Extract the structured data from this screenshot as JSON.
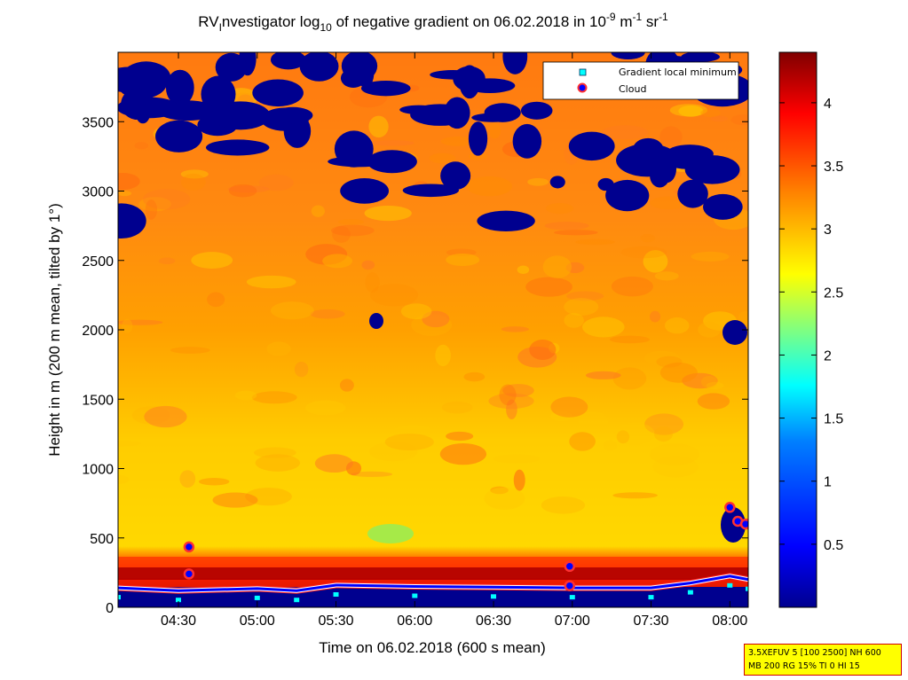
{
  "title": {
    "prefix": "RV",
    "prefix_sub": "I",
    "part1": "nvestigator log",
    "log_sub": "10",
    "part2": " of negative gradient on 06.02.2018 in 10",
    "exp1": "-9",
    "unit1": " m",
    "exp2": "-1",
    "unit2": " sr",
    "exp3": "-1"
  },
  "legend": {
    "gradient_label": "Gradient local minimum",
    "cloud_label": "Cloud"
  },
  "info_box": {
    "line1": "3.5XEFUV 5 [100 2500] NH 600",
    "line2": "MB 200 RG 15% TI 0 HI 15"
  },
  "colors": {
    "colormap": [
      "#00008f",
      "#0000ff",
      "#0080ff",
      "#00ffff",
      "#80ff80",
      "#ffff00",
      "#ff8000",
      "#ff0000",
      "#800000"
    ],
    "background_blue": "#00008f",
    "cloud_marker_fill": "#0000ff",
    "cloud_marker_edge": "#ff3030",
    "gradient_marker": "#00ffff"
  },
  "chart_data": {
    "type": "heatmap",
    "xlabel": "Time on 06.02.2018 (600 s mean)",
    "ylabel": "Height in m (200 m mean, tilted by 1°)",
    "x_ticks": [
      "04:30",
      "05:00",
      "05:30",
      "06:00",
      "06:30",
      "07:00",
      "07:30",
      "08:00"
    ],
    "x_range": [
      "04:07",
      "08:07"
    ],
    "y_ticks": [
      0,
      500,
      1000,
      1500,
      2000,
      2500,
      3000,
      3500
    ],
    "y_range": [
      0,
      4000
    ],
    "colorbar": {
      "ticks": [
        "0.5",
        "1",
        "1.5",
        "2",
        "2.5",
        "3",
        "3.5",
        "4"
      ],
      "range": [
        0,
        4.4
      ]
    },
    "legend_position": "top-right",
    "cloud_points": [
      {
        "time": "04:34",
        "height": 435
      },
      {
        "time": "04:34",
        "height": 240
      },
      {
        "time": "06:59",
        "height": 295
      },
      {
        "time": "06:59",
        "height": 155
      },
      {
        "time": "08:00",
        "height": 720
      },
      {
        "time": "08:03",
        "height": 620
      },
      {
        "time": "08:06",
        "height": 600
      }
    ],
    "gradient_line": [
      {
        "time": "04:07",
        "height": 140
      },
      {
        "time": "04:30",
        "height": 120
      },
      {
        "time": "05:00",
        "height": 135
      },
      {
        "time": "05:15",
        "height": 120
      },
      {
        "time": "05:30",
        "height": 160
      },
      {
        "time": "06:00",
        "height": 150
      },
      {
        "time": "06:30",
        "height": 145
      },
      {
        "time": "07:00",
        "height": 140
      },
      {
        "time": "07:30",
        "height": 140
      },
      {
        "time": "07:45",
        "height": 175
      },
      {
        "time": "08:00",
        "height": 225
      },
      {
        "time": "08:07",
        "height": 200
      }
    ]
  }
}
